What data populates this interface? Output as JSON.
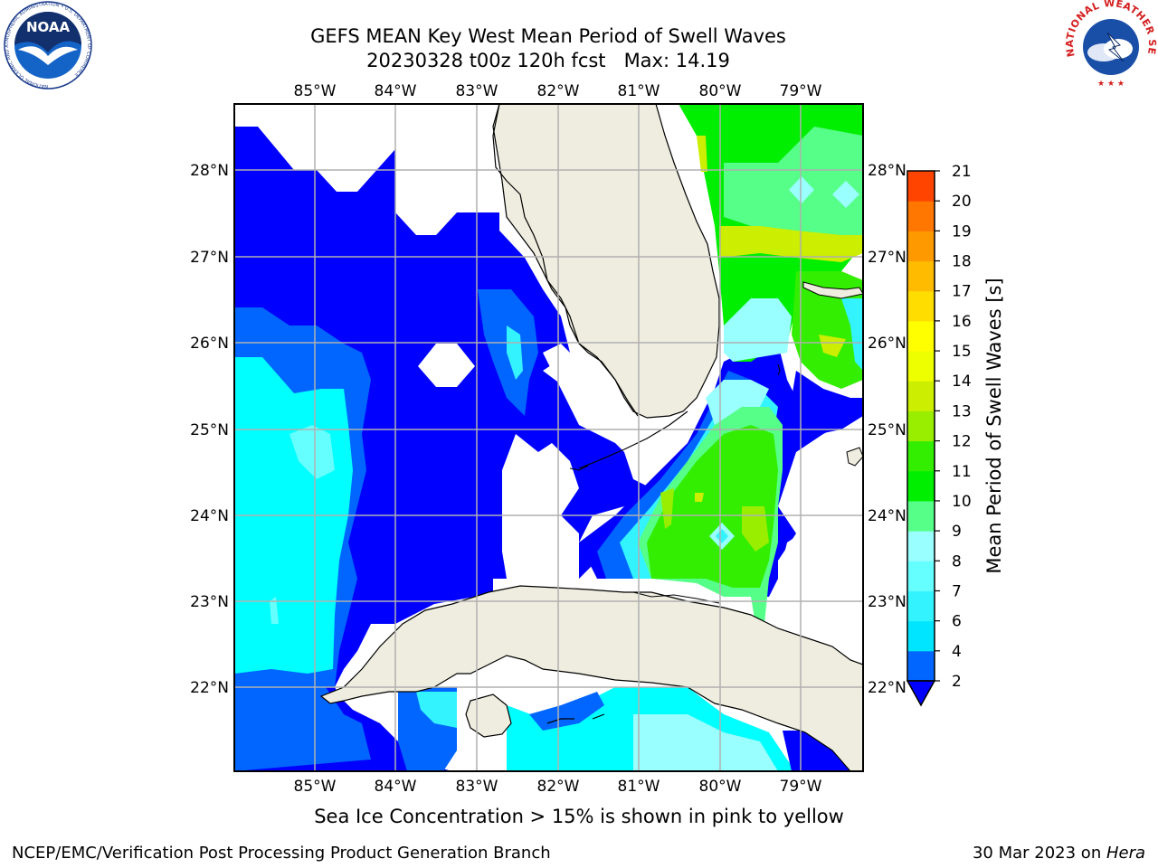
{
  "header": {
    "title_line1": "GEFS MEAN Key West Mean Period of Swell Waves",
    "title_line2": "20230328 t00z 120h fcst   Max: 14.19"
  },
  "map": {
    "lon_labels": [
      "85°W",
      "84°W",
      "83°W",
      "82°W",
      "81°W",
      "80°W",
      "79°W"
    ],
    "lat_labels": [
      "28°N",
      "27°N",
      "26°N",
      "25°N",
      "24°N",
      "23°N",
      "22°N"
    ],
    "colors": {
      "land": "#EEEDDF",
      "grid": "#B0B0B0",
      "no_data": "#FFFFFF"
    }
  },
  "colorbar": {
    "label": "Mean Period of Swell Waves [s]",
    "ticks": [
      "2",
      "4",
      "6",
      "7",
      "8",
      "9",
      "10",
      "11",
      "12",
      "13",
      "14",
      "15",
      "16",
      "17",
      "18",
      "19",
      "20",
      "21"
    ],
    "colors": [
      "#0066FF",
      "#00E5FF",
      "#33F3FF",
      "#66FFFF",
      "#99FFFF",
      "#55FF88",
      "#00EE00",
      "#33EE00",
      "#99EE00",
      "#CCEE00",
      "#EEFF00",
      "#FFFF00",
      "#FFDD00",
      "#FFBB00",
      "#FF9900",
      "#FF7700",
      "#FF4400",
      "#FF0000"
    ],
    "underflow_color": "#0000FF"
  },
  "footer": {
    "note": "Sea Ice Concentration > 15% is shown in pink to yellow",
    "left": "NCEP/EMC/Verification Post Processing Product Generation Branch",
    "right_date": "30 Mar 2023 on ",
    "right_machine": "Hera"
  },
  "logos": {
    "noaa_text": "NOAA",
    "noaa_ring": "NATIONAL OCEANIC AND ATMOSPHERIC ADMINISTRATION • U.S. DEPARTMENT OF COMMERCE",
    "nws_ring": "NATIONAL WEATHER SERVICE"
  }
}
